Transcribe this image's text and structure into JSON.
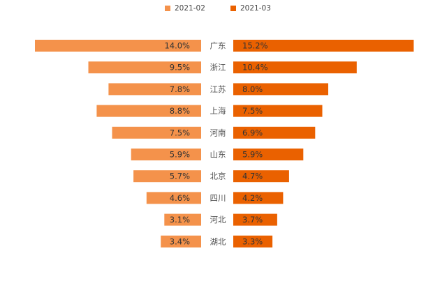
{
  "chart_data": {
    "type": "bar",
    "orientation": "horizontal-butterfly",
    "categories": [
      "广东",
      "浙江",
      "江苏",
      "上海",
      "河南",
      "山东",
      "北京",
      "四川",
      "河北",
      "湖北"
    ],
    "series": [
      {
        "name": "2021-02",
        "values": [
          14.0,
          9.5,
          7.8,
          8.8,
          7.5,
          5.9,
          5.7,
          4.6,
          3.1,
          3.4
        ],
        "unit": "%",
        "color": "#F4924B"
      },
      {
        "name": "2021-03",
        "values": [
          15.2,
          10.4,
          8.0,
          7.5,
          6.9,
          5.9,
          4.7,
          4.2,
          3.7,
          3.3
        ],
        "unit": "%",
        "color": "#EA6100"
      }
    ],
    "legend_position": "top-center",
    "grid": false,
    "xlim": [
      0,
      16
    ]
  },
  "legend": {
    "items": [
      {
        "label": "2021-02",
        "color": "#F4924B"
      },
      {
        "label": "2021-03",
        "color": "#EA6100"
      }
    ]
  }
}
